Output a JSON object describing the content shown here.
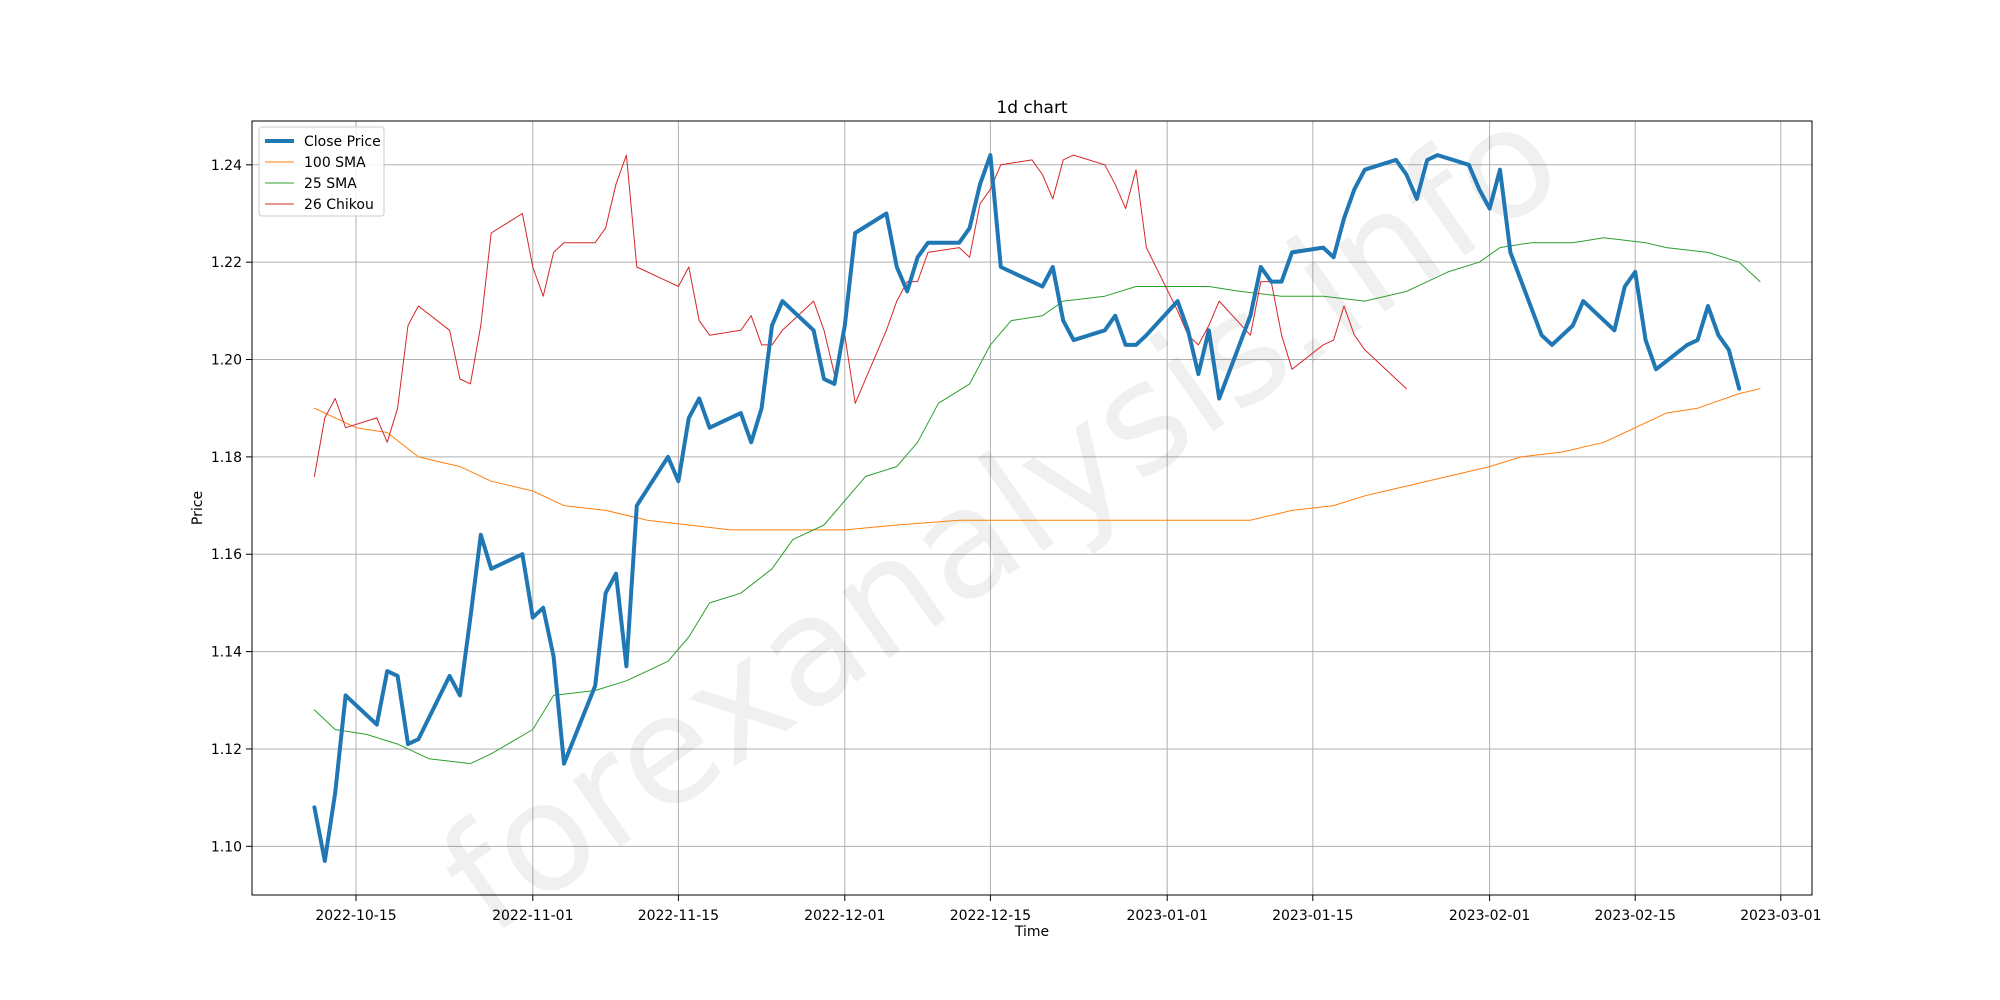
{
  "watermark": "forexanalysis.info",
  "chart_data": {
    "type": "line",
    "title": "1d chart",
    "xlabel": "Time",
    "ylabel": "Price",
    "x_range": [
      "2022-10-05",
      "2023-03-04"
    ],
    "ylim": [
      1.09,
      1.249
    ],
    "grid": true,
    "legend": "top-left",
    "x_ticks": [
      "2022-10-15",
      "2022-11-01",
      "2022-11-15",
      "2022-12-01",
      "2022-12-15",
      "2023-01-01",
      "2023-01-15",
      "2023-02-01",
      "2023-02-15",
      "2023-03-01"
    ],
    "y_ticks": [
      "1.10",
      "1.12",
      "1.14",
      "1.16",
      "1.18",
      "1.20",
      "1.22",
      "1.24"
    ],
    "series": [
      {
        "name": "Close Price",
        "color": "#1f77b4",
        "width": 4,
        "points": [
          [
            "2022-10-11",
            1.108
          ],
          [
            "2022-10-12",
            1.097
          ],
          [
            "2022-10-13",
            1.111
          ],
          [
            "2022-10-14",
            1.131
          ],
          [
            "2022-10-17",
            1.125
          ],
          [
            "2022-10-18",
            1.136
          ],
          [
            "2022-10-19",
            1.135
          ],
          [
            "2022-10-20",
            1.121
          ],
          [
            "2022-10-21",
            1.122
          ],
          [
            "2022-10-24",
            1.135
          ],
          [
            "2022-10-25",
            1.131
          ],
          [
            "2022-10-26",
            1.147
          ],
          [
            "2022-10-27",
            1.164
          ],
          [
            "2022-10-28",
            1.157
          ],
          [
            "2022-10-31",
            1.16
          ],
          [
            "2022-11-01",
            1.147
          ],
          [
            "2022-11-02",
            1.149
          ],
          [
            "2022-11-03",
            1.139
          ],
          [
            "2022-11-04",
            1.117
          ],
          [
            "2022-11-07",
            1.133
          ],
          [
            "2022-11-08",
            1.152
          ],
          [
            "2022-11-09",
            1.156
          ],
          [
            "2022-11-10",
            1.137
          ],
          [
            "2022-11-11",
            1.17
          ],
          [
            "2022-11-14",
            1.18
          ],
          [
            "2022-11-15",
            1.175
          ],
          [
            "2022-11-16",
            1.188
          ],
          [
            "2022-11-17",
            1.192
          ],
          [
            "2022-11-18",
            1.186
          ],
          [
            "2022-11-21",
            1.189
          ],
          [
            "2022-11-22",
            1.183
          ],
          [
            "2022-11-23",
            1.19
          ],
          [
            "2022-11-24",
            1.207
          ],
          [
            "2022-11-25",
            1.212
          ],
          [
            "2022-11-28",
            1.206
          ],
          [
            "2022-11-29",
            1.196
          ],
          [
            "2022-11-30",
            1.195
          ],
          [
            "2022-12-01",
            1.207
          ],
          [
            "2022-12-02",
            1.226
          ],
          [
            "2022-12-05",
            1.23
          ],
          [
            "2022-12-06",
            1.219
          ],
          [
            "2022-12-07",
            1.214
          ],
          [
            "2022-12-08",
            1.221
          ],
          [
            "2022-12-09",
            1.224
          ],
          [
            "2022-12-12",
            1.224
          ],
          [
            "2022-12-13",
            1.227
          ],
          [
            "2022-12-14",
            1.236
          ],
          [
            "2022-12-15",
            1.242
          ],
          [
            "2022-12-16",
            1.219
          ],
          [
            "2022-12-19",
            1.216
          ],
          [
            "2022-12-20",
            1.215
          ],
          [
            "2022-12-21",
            1.219
          ],
          [
            "2022-12-22",
            1.208
          ],
          [
            "2022-12-23",
            1.204
          ],
          [
            "2022-12-26",
            1.206
          ],
          [
            "2022-12-27",
            1.209
          ],
          [
            "2022-12-28",
            1.203
          ],
          [
            "2022-12-29",
            1.203
          ],
          [
            "2022-12-30",
            1.205
          ],
          [
            "2023-01-02",
            1.212
          ],
          [
            "2023-01-03",
            1.206
          ],
          [
            "2023-01-04",
            1.197
          ],
          [
            "2023-01-05",
            1.206
          ],
          [
            "2023-01-06",
            1.192
          ],
          [
            "2023-01-09",
            1.209
          ],
          [
            "2023-01-10",
            1.219
          ],
          [
            "2023-01-11",
            1.216
          ],
          [
            "2023-01-12",
            1.216
          ],
          [
            "2023-01-13",
            1.222
          ],
          [
            "2023-01-16",
            1.223
          ],
          [
            "2023-01-17",
            1.221
          ],
          [
            "2023-01-18",
            1.229
          ],
          [
            "2023-01-19",
            1.235
          ],
          [
            "2023-01-20",
            1.239
          ],
          [
            "2023-01-23",
            1.241
          ],
          [
            "2023-01-24",
            1.238
          ],
          [
            "2023-01-25",
            1.233
          ],
          [
            "2023-01-26",
            1.241
          ],
          [
            "2023-01-27",
            1.242
          ],
          [
            "2023-01-30",
            1.24
          ],
          [
            "2023-01-31",
            1.235
          ],
          [
            "2023-02-01",
            1.231
          ],
          [
            "2023-02-02",
            1.239
          ],
          [
            "2023-02-03",
            1.222
          ],
          [
            "2023-02-06",
            1.205
          ],
          [
            "2023-02-07",
            1.203
          ],
          [
            "2023-02-08",
            1.205
          ],
          [
            "2023-02-09",
            1.207
          ],
          [
            "2023-02-10",
            1.212
          ],
          [
            "2023-02-13",
            1.206
          ],
          [
            "2023-02-14",
            1.215
          ],
          [
            "2023-02-15",
            1.218
          ],
          [
            "2023-02-16",
            1.204
          ],
          [
            "2023-02-17",
            1.198
          ],
          [
            "2023-02-20",
            1.203
          ],
          [
            "2023-02-21",
            1.204
          ],
          [
            "2023-02-22",
            1.211
          ],
          [
            "2023-02-23",
            1.205
          ],
          [
            "2023-02-24",
            1.202
          ],
          [
            "2023-02-25",
            1.194
          ]
        ]
      },
      {
        "name": "100 SMA",
        "color": "#ff7f0e",
        "width": 1,
        "points": [
          [
            "2022-10-11",
            1.19
          ],
          [
            "2022-10-13",
            1.188
          ],
          [
            "2022-10-15",
            1.186
          ],
          [
            "2022-10-18",
            1.185
          ],
          [
            "2022-10-21",
            1.18
          ],
          [
            "2022-10-25",
            1.178
          ],
          [
            "2022-10-28",
            1.175
          ],
          [
            "2022-11-01",
            1.173
          ],
          [
            "2022-11-04",
            1.17
          ],
          [
            "2022-11-08",
            1.169
          ],
          [
            "2022-11-12",
            1.167
          ],
          [
            "2022-11-16",
            1.166
          ],
          [
            "2022-11-20",
            1.165
          ],
          [
            "2022-11-25",
            1.165
          ],
          [
            "2022-12-01",
            1.165
          ],
          [
            "2022-12-06",
            1.166
          ],
          [
            "2022-12-12",
            1.167
          ],
          [
            "2022-12-16",
            1.167
          ],
          [
            "2022-12-22",
            1.167
          ],
          [
            "2022-12-28",
            1.167
          ],
          [
            "2023-01-03",
            1.167
          ],
          [
            "2023-01-09",
            1.167
          ],
          [
            "2023-01-13",
            1.169
          ],
          [
            "2023-01-17",
            1.17
          ],
          [
            "2023-01-20",
            1.172
          ],
          [
            "2023-01-24",
            1.174
          ],
          [
            "2023-01-28",
            1.176
          ],
          [
            "2023-02-01",
            1.178
          ],
          [
            "2023-02-04",
            1.18
          ],
          [
            "2023-02-08",
            1.181
          ],
          [
            "2023-02-12",
            1.183
          ],
          [
            "2023-02-15",
            1.186
          ],
          [
            "2023-02-18",
            1.189
          ],
          [
            "2023-02-21",
            1.19
          ],
          [
            "2023-02-25",
            1.193
          ],
          [
            "2023-02-27",
            1.194
          ]
        ]
      },
      {
        "name": "25 SMA",
        "color": "#2ca02c",
        "width": 1,
        "points": [
          [
            "2022-10-11",
            1.128
          ],
          [
            "2022-10-13",
            1.124
          ],
          [
            "2022-10-16",
            1.123
          ],
          [
            "2022-10-19",
            1.121
          ],
          [
            "2022-10-22",
            1.118
          ],
          [
            "2022-10-26",
            1.117
          ],
          [
            "2022-10-28",
            1.119
          ],
          [
            "2022-11-01",
            1.124
          ],
          [
            "2022-11-03",
            1.131
          ],
          [
            "2022-11-07",
            1.132
          ],
          [
            "2022-11-10",
            1.134
          ],
          [
            "2022-11-14",
            1.138
          ],
          [
            "2022-11-16",
            1.143
          ],
          [
            "2022-11-18",
            1.15
          ],
          [
            "2022-11-21",
            1.152
          ],
          [
            "2022-11-24",
            1.157
          ],
          [
            "2022-11-26",
            1.163
          ],
          [
            "2022-11-29",
            1.166
          ],
          [
            "2022-12-01",
            1.171
          ],
          [
            "2022-12-03",
            1.176
          ],
          [
            "2022-12-06",
            1.178
          ],
          [
            "2022-12-08",
            1.183
          ],
          [
            "2022-12-10",
            1.191
          ],
          [
            "2022-12-13",
            1.195
          ],
          [
            "2022-12-15",
            1.203
          ],
          [
            "2022-12-17",
            1.208
          ],
          [
            "2022-12-20",
            1.209
          ],
          [
            "2022-12-22",
            1.212
          ],
          [
            "2022-12-26",
            1.213
          ],
          [
            "2022-12-29",
            1.215
          ],
          [
            "2023-01-02",
            1.215
          ],
          [
            "2023-01-05",
            1.215
          ],
          [
            "2023-01-08",
            1.214
          ],
          [
            "2023-01-12",
            1.213
          ],
          [
            "2023-01-16",
            1.213
          ],
          [
            "2023-01-20",
            1.212
          ],
          [
            "2023-01-24",
            1.214
          ],
          [
            "2023-01-28",
            1.218
          ],
          [
            "2023-01-31",
            1.22
          ],
          [
            "2023-02-02",
            1.223
          ],
          [
            "2023-02-05",
            1.224
          ],
          [
            "2023-02-09",
            1.224
          ],
          [
            "2023-02-12",
            1.225
          ],
          [
            "2023-02-16",
            1.224
          ],
          [
            "2023-02-18",
            1.223
          ],
          [
            "2023-02-22",
            1.222
          ],
          [
            "2023-02-25",
            1.22
          ],
          [
            "2023-02-27",
            1.216
          ]
        ]
      },
      {
        "name": "26 Chikou",
        "color": "#d62728",
        "width": 1,
        "points": [
          [
            "2022-10-11",
            1.176
          ],
          [
            "2022-10-12",
            1.188
          ],
          [
            "2022-10-13",
            1.192
          ],
          [
            "2022-10-14",
            1.186
          ],
          [
            "2022-10-17",
            1.188
          ],
          [
            "2022-10-18",
            1.183
          ],
          [
            "2022-10-19",
            1.19
          ],
          [
            "2022-10-20",
            1.207
          ],
          [
            "2022-10-21",
            1.211
          ],
          [
            "2022-10-24",
            1.206
          ],
          [
            "2022-10-25",
            1.196
          ],
          [
            "2022-10-26",
            1.195
          ],
          [
            "2022-10-27",
            1.207
          ],
          [
            "2022-10-28",
            1.226
          ],
          [
            "2022-10-31",
            1.23
          ],
          [
            "2022-11-01",
            1.219
          ],
          [
            "2022-11-02",
            1.213
          ],
          [
            "2022-11-03",
            1.222
          ],
          [
            "2022-11-04",
            1.224
          ],
          [
            "2022-11-07",
            1.224
          ],
          [
            "2022-11-08",
            1.227
          ],
          [
            "2022-11-09",
            1.236
          ],
          [
            "2022-11-10",
            1.242
          ],
          [
            "2022-11-11",
            1.219
          ],
          [
            "2022-11-14",
            1.216
          ],
          [
            "2022-11-15",
            1.215
          ],
          [
            "2022-11-16",
            1.219
          ],
          [
            "2022-11-17",
            1.208
          ],
          [
            "2022-11-18",
            1.205
          ],
          [
            "2022-11-21",
            1.206
          ],
          [
            "2022-11-22",
            1.209
          ],
          [
            "2022-11-23",
            1.203
          ],
          [
            "2022-11-24",
            1.203
          ],
          [
            "2022-11-25",
            1.206
          ],
          [
            "2022-11-28",
            1.212
          ],
          [
            "2022-11-29",
            1.206
          ],
          [
            "2022-11-30",
            1.197
          ],
          [
            "2022-12-01",
            1.205
          ],
          [
            "2022-12-02",
            1.191
          ],
          [
            "2022-12-05",
            1.206
          ],
          [
            "2022-12-06",
            1.212
          ],
          [
            "2022-12-07",
            1.216
          ],
          [
            "2022-12-08",
            1.216
          ],
          [
            "2022-12-09",
            1.222
          ],
          [
            "2022-12-12",
            1.223
          ],
          [
            "2022-12-13",
            1.221
          ],
          [
            "2022-12-14",
            1.232
          ],
          [
            "2022-12-15",
            1.235
          ],
          [
            "2022-12-16",
            1.24
          ],
          [
            "2022-12-19",
            1.241
          ],
          [
            "2022-12-20",
            1.238
          ],
          [
            "2022-12-21",
            1.233
          ],
          [
            "2022-12-22",
            1.241
          ],
          [
            "2022-12-23",
            1.242
          ],
          [
            "2022-12-26",
            1.24
          ],
          [
            "2022-12-27",
            1.236
          ],
          [
            "2022-12-28",
            1.231
          ],
          [
            "2022-12-29",
            1.239
          ],
          [
            "2022-12-30",
            1.223
          ],
          [
            "2023-01-02",
            1.21
          ],
          [
            "2023-01-03",
            1.205
          ],
          [
            "2023-01-04",
            1.203
          ],
          [
            "2023-01-05",
            1.207
          ],
          [
            "2023-01-06",
            1.212
          ],
          [
            "2023-01-09",
            1.205
          ],
          [
            "2023-01-10",
            1.216
          ],
          [
            "2023-01-11",
            1.216
          ],
          [
            "2023-01-12",
            1.205
          ],
          [
            "2023-01-13",
            1.198
          ],
          [
            "2023-01-16",
            1.203
          ],
          [
            "2023-01-17",
            1.204
          ],
          [
            "2023-01-18",
            1.211
          ],
          [
            "2023-01-19",
            1.205
          ],
          [
            "2023-01-20",
            1.202
          ],
          [
            "2023-01-23",
            1.196
          ],
          [
            "2023-01-24",
            1.194
          ]
        ]
      }
    ]
  }
}
